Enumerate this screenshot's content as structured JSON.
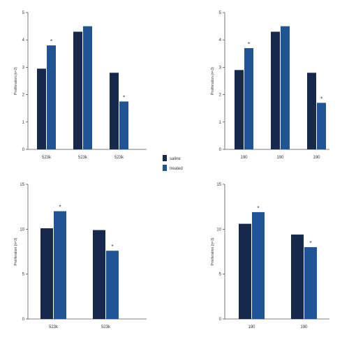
{
  "colors": {
    "saline": "#16294d",
    "treated": "#1f5596",
    "axis": "#555555"
  },
  "legend": {
    "placement": "center",
    "items": [
      "saline",
      "treated"
    ]
  },
  "chart_data": [
    {
      "type": "bar",
      "ylabel": "Proliferation (n=3)",
      "ylim": [
        0,
        5
      ],
      "ticks": [
        "0",
        "1",
        "2",
        "3",
        "4",
        "5"
      ],
      "categories": [
        "523k",
        "523k",
        "523k"
      ],
      "series": [
        {
          "name": "saline",
          "values": [
            2.95,
            4.3,
            2.8
          ]
        },
        {
          "name": "treated",
          "values": [
            3.8,
            4.5,
            1.75
          ]
        }
      ],
      "significance": [
        [
          false,
          true
        ],
        [
          false,
          false
        ],
        [
          false,
          true
        ]
      ]
    },
    {
      "type": "bar",
      "ylabel": "Proliferation (n=3)",
      "ylim": [
        0,
        5
      ],
      "ticks": [
        "0",
        "1",
        "2",
        "3",
        "4",
        "5"
      ],
      "categories": [
        "190",
        "190",
        "190"
      ],
      "series": [
        {
          "name": "saline",
          "values": [
            2.9,
            4.3,
            2.8
          ]
        },
        {
          "name": "treated",
          "values": [
            3.7,
            4.5,
            1.7
          ]
        }
      ],
      "significance": [
        [
          false,
          true
        ],
        [
          false,
          false
        ],
        [
          false,
          true
        ]
      ]
    },
    {
      "type": "bar",
      "ylabel": "Proliferation (n=3)",
      "ylim": [
        0,
        15
      ],
      "ticks": [
        "0",
        "5",
        "10",
        "15"
      ],
      "categories": [
        "523k",
        "523k"
      ],
      "series": [
        {
          "name": "saline",
          "values": [
            10.1,
            9.9
          ]
        },
        {
          "name": "treated",
          "values": [
            12.0,
            7.6
          ]
        }
      ],
      "significance": [
        [
          false,
          true
        ],
        [
          false,
          true
        ]
      ]
    },
    {
      "type": "bar",
      "ylabel": "Proliferation (n=3)",
      "ylim": [
        0,
        15
      ],
      "ticks": [
        "0",
        "5",
        "10",
        "15"
      ],
      "categories": [
        "190",
        "190"
      ],
      "series": [
        {
          "name": "saline",
          "values": [
            10.6,
            9.4
          ]
        },
        {
          "name": "treated",
          "values": [
            11.9,
            8.0
          ]
        }
      ],
      "significance": [
        [
          false,
          true
        ],
        [
          false,
          true
        ]
      ]
    }
  ]
}
